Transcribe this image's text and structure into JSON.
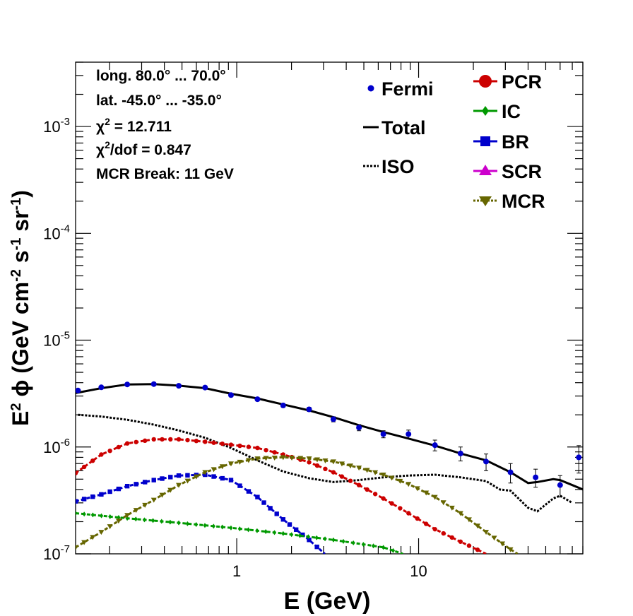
{
  "chart_data": {
    "type": "line",
    "x_scale": "log",
    "y_scale": "log",
    "xlim": [
      0.13,
      80
    ],
    "ylim": [
      1e-07,
      0.004
    ],
    "xlabel": "E (GeV)",
    "ylabel_parts": [
      "E",
      "2",
      " ϕ (GeV cm",
      "-2",
      " s",
      "-1",
      " sr",
      "-1",
      ")"
    ],
    "x_ticks": [
      {
        "value": 1,
        "label": "1"
      },
      {
        "value": 10,
        "label": "10"
      }
    ],
    "y_ticks": [
      {
        "value": 1e-07,
        "base": "10",
        "exp": "-7"
      },
      {
        "value": 1e-06,
        "base": "10",
        "exp": "-6"
      },
      {
        "value": 1e-05,
        "base": "10",
        "exp": "-5"
      },
      {
        "value": 0.0001,
        "base": "10",
        "exp": "-4"
      },
      {
        "value": 0.001,
        "base": "10",
        "exp": "-3"
      }
    ],
    "info": {
      "line1": "long. 80.0° ... 70.0°",
      "line2": "lat. -45.0° ... -35.0°",
      "chi2_sym": "χ",
      "chi2_sup": "2",
      "chi2_value": " = 12.711",
      "chi2dof_sym": "χ",
      "chi2dof_sup": "2",
      "chi2dof_value": "/dof = 0.847",
      "line5": "MCR Break: 11 GeV"
    },
    "legend": [
      {
        "key": "fermi",
        "label": "Fermi"
      },
      {
        "key": "total",
        "label": "Total"
      },
      {
        "key": "iso",
        "label": "ISO"
      },
      {
        "key": "pcr",
        "label": "PCR"
      },
      {
        "key": "ic",
        "label": "IC"
      },
      {
        "key": "br",
        "label": "BR"
      },
      {
        "key": "scr",
        "label": "SCR"
      },
      {
        "key": "mcr",
        "label": "MCR"
      }
    ],
    "colors": {
      "fermi": "#0000cc",
      "total": "#000000",
      "iso": "#000000",
      "pcr": "#cc0000",
      "ic": "#009900",
      "br": "#0000cc",
      "scr": "#cc00cc",
      "mcr": "#666600"
    },
    "fermi_points": [
      {
        "x": 0.134,
        "y": 3.38e-06,
        "err": 1e-07
      },
      {
        "x": 0.18,
        "y": 3.62e-06,
        "err": 1e-07
      },
      {
        "x": 0.25,
        "y": 3.85e-06,
        "err": 1e-07
      },
      {
        "x": 0.35,
        "y": 3.88e-06,
        "err": 1e-07
      },
      {
        "x": 0.48,
        "y": 3.74e-06,
        "err": 1e-07
      },
      {
        "x": 0.67,
        "y": 3.6e-06,
        "err": 1e-07
      },
      {
        "x": 0.93,
        "y": 3.06e-06,
        "err": 1e-07
      },
      {
        "x": 1.3,
        "y": 2.8e-06,
        "err": 1e-07
      },
      {
        "x": 1.8,
        "y": 2.45e-06,
        "err": 1e-07
      },
      {
        "x": 2.5,
        "y": 2.25e-06,
        "err": 1e-07
      },
      {
        "x": 3.4,
        "y": 1.82e-06,
        "err": 1e-07
      },
      {
        "x": 4.7,
        "y": 1.52e-06,
        "err": 1e-07
      },
      {
        "x": 6.4,
        "y": 1.32e-06,
        "err": 1e-07
      },
      {
        "x": 8.8,
        "y": 1.32e-06,
        "err": 1.2e-07
      },
      {
        "x": 12.3,
        "y": 1.04e-06,
        "err": 1.2e-07
      },
      {
        "x": 17,
        "y": 8.7e-07,
        "err": 1.3e-07
      },
      {
        "x": 23.5,
        "y": 7.3e-07,
        "err": 1.3e-07
      },
      {
        "x": 32,
        "y": 5.8e-07,
        "err": 1.2e-07
      },
      {
        "x": 44,
        "y": 5.2e-07,
        "err": 1e-07
      },
      {
        "x": 60,
        "y": 4.4e-07,
        "err": 1e-07
      },
      {
        "x": 76,
        "y": 8e-07,
        "err": 2.3e-07
      }
    ],
    "series": [
      {
        "key": "total",
        "name": "Total",
        "style": "solid",
        "marker": "none",
        "x": [
          0.13,
          0.18,
          0.25,
          0.35,
          0.48,
          0.67,
          0.93,
          1.3,
          1.8,
          2.5,
          3.4,
          4.7,
          6.4,
          8.8,
          12.3,
          17,
          23.5,
          32,
          40,
          45,
          55,
          60,
          70,
          80
        ],
        "y": [
          3.2e-06,
          3.55e-06,
          3.85e-06,
          3.88e-06,
          3.75e-06,
          3.55e-06,
          3.15e-06,
          2.85e-06,
          2.5e-06,
          2.2e-06,
          1.9e-06,
          1.6e-06,
          1.38e-06,
          1.2e-06,
          1.03e-06,
          8.7e-07,
          7.5e-07,
          5.8e-07,
          4.6e-07,
          4.7e-07,
          5e-07,
          4.9e-07,
          4.4e-07,
          4e-07
        ]
      },
      {
        "key": "iso",
        "name": "ISO",
        "style": "dotted",
        "marker": "none",
        "x": [
          0.134,
          0.18,
          0.25,
          0.35,
          0.48,
          0.67,
          0.93,
          1.3,
          1.8,
          2.5,
          3.4,
          4.7,
          6.4,
          8.8,
          12.3,
          17,
          23.5,
          28,
          32,
          40,
          45,
          55,
          60,
          70
        ],
        "y": [
          2e-06,
          1.93e-06,
          1.8e-06,
          1.62e-06,
          1.43e-06,
          1.22e-06,
          9.8e-07,
          7.5e-07,
          5.9e-07,
          5.1e-07,
          4.7e-07,
          4.9e-07,
          5.2e-07,
          5.4e-07,
          5.5e-07,
          5.2e-07,
          4.8e-07,
          4e-07,
          3.9e-07,
          2.7e-07,
          2.5e-07,
          3.3e-07,
          3.5e-07,
          3e-07
        ]
      },
      {
        "key": "pcr",
        "name": "PCR",
        "style": "dashed",
        "marker": "circle",
        "x": [
          0.13,
          0.18,
          0.25,
          0.35,
          0.48,
          0.67,
          0.93,
          1.3,
          1.8,
          2.5,
          3.4,
          4.7,
          6.4,
          8.8,
          12.3,
          17,
          23.5
        ],
        "y": [
          5.7e-07,
          8.5e-07,
          1.08e-06,
          1.18e-06,
          1.18e-06,
          1.12e-06,
          1.05e-06,
          9.8e-07,
          8.5e-07,
          7.2e-07,
          5.8e-07,
          4.4e-07,
          3.3e-07,
          2.4e-07,
          1.7e-07,
          1.3e-07,
          1e-07
        ]
      },
      {
        "key": "br",
        "name": "BR",
        "style": "dashed",
        "marker": "square",
        "x": [
          0.13,
          0.18,
          0.25,
          0.35,
          0.48,
          0.67,
          0.93,
          1.3,
          1.8,
          2.5,
          3.05
        ],
        "y": [
          3.1e-07,
          3.6e-07,
          4.3e-07,
          4.9e-07,
          5.4e-07,
          5.5e-07,
          4.9e-07,
          3.4e-07,
          2.1e-07,
          1.35e-07,
          1e-07
        ]
      },
      {
        "key": "ic",
        "name": "IC",
        "style": "dashed",
        "marker": "diamond",
        "x": [
          0.13,
          0.25,
          0.48,
          0.93,
          1.8,
          3.4,
          6.4,
          8.2
        ],
        "y": [
          2.4e-07,
          2.15e-07,
          1.95e-07,
          1.75e-07,
          1.55e-07,
          1.35e-07,
          1.15e-07,
          1e-07
        ]
      },
      {
        "key": "mcr",
        "name": "MCR",
        "style": "dashed",
        "marker": "triangle-down",
        "x": [
          0.13,
          0.18,
          0.25,
          0.35,
          0.48,
          0.67,
          0.93,
          1.3,
          1.8,
          2.5,
          3.4,
          4.7,
          6.4,
          8.8,
          12.3,
          17,
          23.5,
          32,
          35
        ],
        "y": [
          1.15e-07,
          1.6e-07,
          2.3e-07,
          3.2e-07,
          4.4e-07,
          5.8e-07,
          7e-07,
          7.8e-07,
          8e-07,
          7.8e-07,
          7.3e-07,
          6.4e-07,
          5.5e-07,
          4.5e-07,
          3.4e-07,
          2.4e-07,
          1.6e-07,
          1.1e-07,
          1e-07
        ]
      }
    ]
  }
}
